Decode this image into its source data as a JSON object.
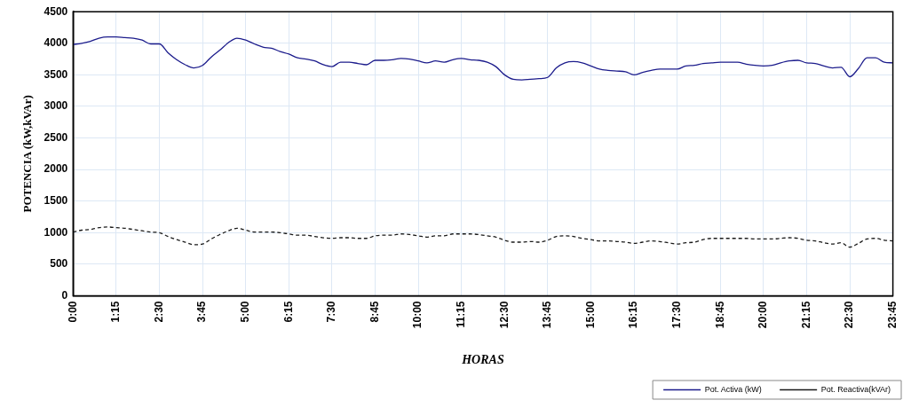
{
  "chart_data": {
    "type": "line",
    "xlabel": "HORAS",
    "ylabel": "POTENCIA (kW,kVAr)",
    "categories": [
      "0:00",
      null,
      null,
      null,
      null,
      "1:15",
      null,
      null,
      null,
      null,
      "2:30",
      null,
      null,
      null,
      null,
      "3:45",
      null,
      null,
      null,
      null,
      "5:00",
      null,
      null,
      null,
      null,
      "6:15",
      null,
      null,
      null,
      null,
      "7:30",
      null,
      null,
      null,
      null,
      "8:45",
      null,
      null,
      null,
      null,
      "10:00",
      null,
      null,
      null,
      null,
      "11:15",
      null,
      null,
      null,
      null,
      "12:30",
      null,
      null,
      null,
      null,
      "13:45",
      null,
      null,
      null,
      null,
      "15:00",
      null,
      null,
      null,
      null,
      "16:15",
      null,
      null,
      null,
      null,
      "17:30",
      null,
      null,
      null,
      null,
      "18:45",
      null,
      null,
      null,
      null,
      "20:00",
      null,
      null,
      null,
      null,
      "21:15",
      null,
      null,
      null,
      null,
      "22:30",
      null,
      null,
      null,
      null,
      "23:45"
    ],
    "series": [
      {
        "name": "Pot. Activa (kW)",
        "color": "#1c1c8c",
        "line_style": "solid",
        "values": [
          3980,
          4000,
          4030,
          4080,
          4100,
          4100,
          4090,
          4080,
          4050,
          3990,
          3990,
          3850,
          3740,
          3660,
          3610,
          3650,
          3780,
          3890,
          4010,
          4080,
          4050,
          3990,
          3940,
          3920,
          3870,
          3830,
          3770,
          3750,
          3720,
          3660,
          3630,
          3700,
          3700,
          3680,
          3660,
          3730,
          3730,
          3740,
          3760,
          3750,
          3720,
          3690,
          3720,
          3700,
          3740,
          3760,
          3740,
          3730,
          3700,
          3630,
          3500,
          3430,
          3420,
          3430,
          3440,
          3460,
          3610,
          3690,
          3710,
          3690,
          3640,
          3590,
          3570,
          3560,
          3550,
          3500,
          3540,
          3570,
          3590,
          3590,
          3590,
          3640,
          3650,
          3680,
          3690,
          3700,
          3700,
          3700,
          3670,
          3650,
          3640,
          3650,
          3690,
          3720,
          3730,
          3690,
          3680,
          3640,
          3610,
          3620,
          3470,
          3600,
          3770,
          3770,
          3700,
          3690
        ]
      },
      {
        "name": "Pot. Reactiva(kVAr)",
        "color": "#1a1a1a",
        "line_style": "dashed",
        "values": [
          1010,
          1040,
          1050,
          1080,
          1090,
          1080,
          1070,
          1050,
          1030,
          1010,
          1000,
          940,
          890,
          850,
          810,
          820,
          900,
          970,
          1030,
          1070,
          1040,
          1010,
          1010,
          1010,
          1000,
          980,
          960,
          960,
          940,
          920,
          910,
          920,
          920,
          910,
          910,
          950,
          960,
          960,
          980,
          970,
          950,
          930,
          950,
          950,
          980,
          980,
          980,
          970,
          950,
          930,
          880,
          850,
          850,
          860,
          850,
          880,
          940,
          950,
          940,
          910,
          890,
          870,
          870,
          860,
          850,
          830,
          850,
          870,
          860,
          840,
          820,
          840,
          850,
          890,
          910,
          910,
          910,
          910,
          910,
          900,
          900,
          900,
          910,
          920,
          910,
          880,
          870,
          840,
          820,
          840,
          770,
          830,
          900,
          910,
          880,
          870
        ]
      }
    ],
    "ylim": [
      0,
      4500
    ],
    "yticks": [
      0,
      500,
      1000,
      1500,
      2000,
      2500,
      3000,
      3500,
      4000,
      4500
    ],
    "grid": true,
    "legend": "bottom right",
    "marker": "none"
  }
}
